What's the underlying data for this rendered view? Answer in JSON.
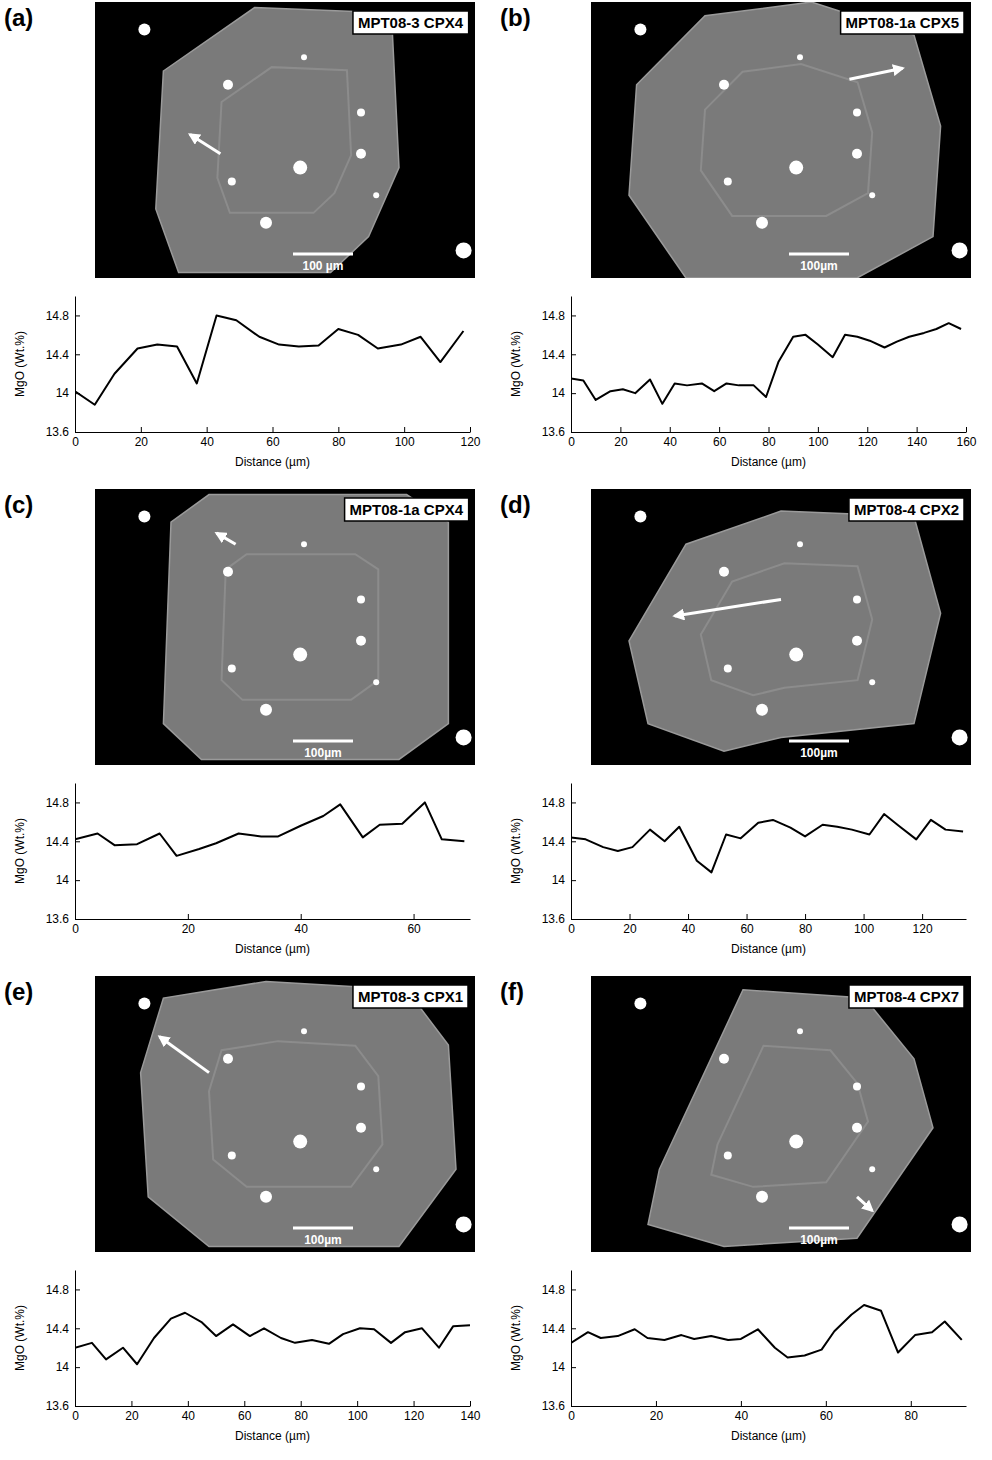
{
  "images": [
    {
      "panel": "(a)",
      "label": "MPT08-3 CPX4",
      "scale_bar": "100 µm"
    },
    {
      "panel": "(b)",
      "label": "MPT08-1a CPX5",
      "scale_bar": "100µm"
    },
    {
      "panel": "(c)",
      "label": "MPT08-1a CPX4",
      "scale_bar": "100µm"
    },
    {
      "panel": "(d)",
      "label": "MPT08-4 CPX2",
      "scale_bar": "100µm"
    },
    {
      "panel": "(e)",
      "label": "MPT08-3 CPX1",
      "scale_bar": "100µm"
    },
    {
      "panel": "(f)",
      "label": "MPT08-4 CPX7",
      "scale_bar": "100µm"
    }
  ],
  "chart_data": [
    {
      "type": "line",
      "color": "#000000",
      "xlabel": "Distance (µm)",
      "ylabel": "MgO (Wt.%)",
      "x": [
        0,
        6,
        12,
        19,
        25,
        31,
        37,
        43,
        49,
        56,
        62,
        68,
        74,
        80,
        86,
        92,
        99,
        105,
        111,
        118
      ],
      "values": [
        14.02,
        13.88,
        14.2,
        14.46,
        14.5,
        14.48,
        14.1,
        14.8,
        14.75,
        14.58,
        14.5,
        14.48,
        14.49,
        14.66,
        14.6,
        14.46,
        14.5,
        14.58,
        14.32,
        14.64
      ],
      "xlim": [
        0,
        120
      ],
      "xticks": [
        0,
        20,
        40,
        60,
        80,
        100,
        120
      ],
      "ylim": [
        13.6,
        15.0
      ],
      "yticks": [
        13.6,
        14,
        14.4,
        14.8
      ]
    },
    {
      "type": "line",
      "color": "#000000",
      "xlabel": "Distance (µm)",
      "ylabel": "MgO (Wt.%)",
      "x": [
        0,
        5,
        10,
        16,
        21,
        26,
        32,
        37,
        42,
        47,
        53,
        58,
        63,
        68,
        74,
        79,
        84,
        90,
        95,
        100,
        106,
        111,
        116,
        121,
        127,
        132,
        137,
        143,
        148,
        153,
        158
      ],
      "values": [
        14.15,
        14.13,
        13.93,
        14.02,
        14.04,
        14.0,
        14.14,
        13.89,
        14.1,
        14.08,
        14.1,
        14.02,
        14.1,
        14.08,
        14.08,
        13.96,
        14.32,
        14.58,
        14.6,
        14.5,
        14.37,
        14.6,
        14.58,
        14.54,
        14.47,
        14.53,
        14.58,
        14.62,
        14.66,
        14.72,
        14.66
      ],
      "xlim": [
        0,
        160
      ],
      "xticks": [
        0,
        20,
        40,
        60,
        80,
        100,
        120,
        140,
        160
      ],
      "ylim": [
        13.6,
        15.0
      ],
      "yticks": [
        13.6,
        14,
        14.4,
        14.8
      ]
    },
    {
      "type": "line",
      "color": "#000000",
      "xlabel": "Distance (µm)",
      "ylabel": "MgO (Wt.%)",
      "x": [
        0,
        4,
        7,
        11,
        15,
        18,
        22,
        25,
        29,
        33,
        36,
        40,
        44,
        47,
        51,
        54,
        58,
        62,
        65,
        69
      ],
      "values": [
        14.42,
        14.48,
        14.36,
        14.37,
        14.48,
        14.25,
        14.32,
        14.38,
        14.48,
        14.45,
        14.45,
        14.56,
        14.66,
        14.78,
        14.44,
        14.57,
        14.58,
        14.8,
        14.42,
        14.4
      ],
      "xlim": [
        0,
        70
      ],
      "xticks": [
        0,
        20,
        40,
        60
      ],
      "ylim": [
        13.6,
        15.0
      ],
      "yticks": [
        13.6,
        14,
        14.4,
        14.8
      ]
    },
    {
      "type": "line",
      "color": "#000000",
      "xlabel": "Distance (µm)",
      "ylabel": "MgO (Wt.%)",
      "x": [
        0,
        5,
        11,
        16,
        21,
        27,
        32,
        37,
        43,
        48,
        53,
        58,
        64,
        69,
        75,
        80,
        86,
        91,
        96,
        102,
        107,
        112,
        118,
        123,
        128,
        134
      ],
      "values": [
        14.44,
        14.42,
        14.34,
        14.3,
        14.34,
        14.52,
        14.4,
        14.55,
        14.2,
        14.08,
        14.47,
        14.43,
        14.59,
        14.62,
        14.54,
        14.45,
        14.57,
        14.55,
        14.52,
        14.47,
        14.68,
        14.56,
        14.42,
        14.62,
        14.52,
        14.5
      ],
      "xlim": [
        0,
        135
      ],
      "xticks": [
        0,
        20,
        40,
        60,
        80,
        100,
        120
      ],
      "ylim": [
        13.6,
        15.0
      ],
      "yticks": [
        13.6,
        14,
        14.4,
        14.8
      ]
    },
    {
      "type": "line",
      "color": "#000000",
      "xlabel": "Distance (µm)",
      "ylabel": "MgO (Wt.%)",
      "x": [
        0,
        6,
        11,
        17,
        22,
        28,
        34,
        39,
        45,
        50,
        56,
        62,
        67,
        73,
        78,
        84,
        90,
        95,
        101,
        106,
        112,
        117,
        123,
        129,
        134,
        140
      ],
      "values": [
        14.2,
        14.25,
        14.08,
        14.2,
        14.03,
        14.3,
        14.5,
        14.56,
        14.46,
        14.32,
        14.44,
        14.32,
        14.4,
        14.3,
        14.25,
        14.28,
        14.24,
        14.34,
        14.4,
        14.39,
        14.25,
        14.36,
        14.4,
        14.2,
        14.42,
        14.43
      ],
      "xlim": [
        0,
        140
      ],
      "xticks": [
        0,
        20,
        40,
        60,
        80,
        100,
        120,
        140
      ],
      "ylim": [
        13.6,
        15.0
      ],
      "yticks": [
        13.6,
        14,
        14.4,
        14.8
      ]
    },
    {
      "type": "line",
      "color": "#000000",
      "xlabel": "Distance (µm)",
      "ylabel": "MgO (Wt.%)",
      "x": [
        0,
        4,
        7,
        11,
        15,
        18,
        22,
        26,
        29,
        33,
        37,
        40,
        44,
        48,
        51,
        55,
        59,
        62,
        66,
        69,
        73,
        77,
        81,
        85,
        88,
        92
      ],
      "values": [
        14.25,
        14.36,
        14.3,
        14.32,
        14.39,
        14.3,
        14.28,
        14.33,
        14.29,
        14.32,
        14.28,
        14.29,
        14.39,
        14.2,
        14.1,
        14.12,
        14.18,
        14.37,
        14.54,
        14.64,
        14.58,
        14.15,
        14.33,
        14.36,
        14.47,
        14.28
      ],
      "xlim": [
        0,
        93
      ],
      "xticks": [
        0,
        20,
        40,
        60,
        80
      ],
      "ylim": [
        13.6,
        15.0
      ],
      "yticks": [
        13.6,
        14,
        14.4,
        14.8
      ]
    }
  ]
}
